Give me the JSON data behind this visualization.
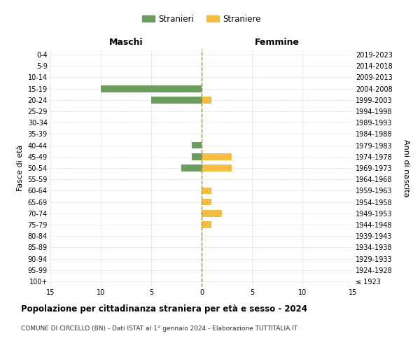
{
  "age_groups": [
    "100+",
    "95-99",
    "90-94",
    "85-89",
    "80-84",
    "75-79",
    "70-74",
    "65-69",
    "60-64",
    "55-59",
    "50-54",
    "45-49",
    "40-44",
    "35-39",
    "30-34",
    "25-29",
    "20-24",
    "15-19",
    "10-14",
    "5-9",
    "0-4"
  ],
  "birth_years": [
    "≤ 1923",
    "1924-1928",
    "1929-1933",
    "1934-1938",
    "1939-1943",
    "1944-1948",
    "1949-1953",
    "1954-1958",
    "1959-1963",
    "1964-1968",
    "1969-1973",
    "1974-1978",
    "1979-1983",
    "1984-1988",
    "1989-1993",
    "1994-1998",
    "1999-2003",
    "2004-2008",
    "2009-2013",
    "2014-2018",
    "2019-2023"
  ],
  "males": [
    0,
    0,
    0,
    0,
    0,
    0,
    0,
    0,
    0,
    0,
    2,
    1,
    1,
    0,
    0,
    0,
    5,
    10,
    0,
    0,
    0
  ],
  "females": [
    0,
    0,
    0,
    0,
    0,
    1,
    2,
    1,
    1,
    0,
    3,
    3,
    0,
    0,
    0,
    0,
    1,
    0,
    0,
    0,
    0
  ],
  "male_color": "#6a9e5e",
  "female_color": "#f5bc42",
  "center_line_color": "#8a8a4a",
  "grid_color": "#cccccc",
  "title": "Popolazione per cittadinanza straniera per età e sesso - 2024",
  "subtitle": "COMUNE DI CIRCELLO (BN) - Dati ISTAT al 1° gennaio 2024 - Elaborazione TUTTITALIA.IT",
  "xlabel_left": "Maschi",
  "xlabel_right": "Femmine",
  "ylabel_left": "Fasce di età",
  "ylabel_right": "Anni di nascita",
  "xlim": 15,
  "legend_male": "Stranieri",
  "legend_female": "Straniere",
  "background_color": "#ffffff",
  "plot_bg_color": "#ffffff"
}
